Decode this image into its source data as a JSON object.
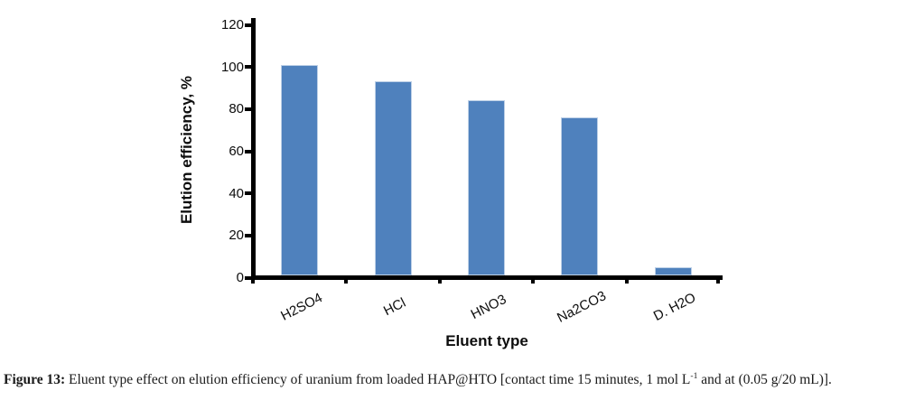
{
  "chart_data": {
    "type": "bar",
    "categories": [
      "H2SO4",
      "HCl",
      "HNO3",
      "Na2CO3",
      "D. H2O"
    ],
    "values": [
      100,
      92,
      83,
      75,
      4
    ],
    "title": "",
    "xlabel": "Eluent type",
    "ylabel": "Elution efficiency, %",
    "ylim": [
      0,
      120
    ],
    "yticks": [
      0,
      20,
      40,
      60,
      80,
      100,
      120
    ],
    "grid": false,
    "legend": false,
    "bar_color": "#4f81bd",
    "bar_border_color": "#bccfe6",
    "axis_color": "#000000"
  },
  "caption": {
    "label": "Figure 13:",
    "body_before_sup": " Eluent type effect on elution efficiency of uranium from loaded HAP@HTO [contact time 15 minutes, 1 mol L",
    "superscript": "-1",
    "body_after_sup": " and at (0.05 g/20 mL)]."
  }
}
